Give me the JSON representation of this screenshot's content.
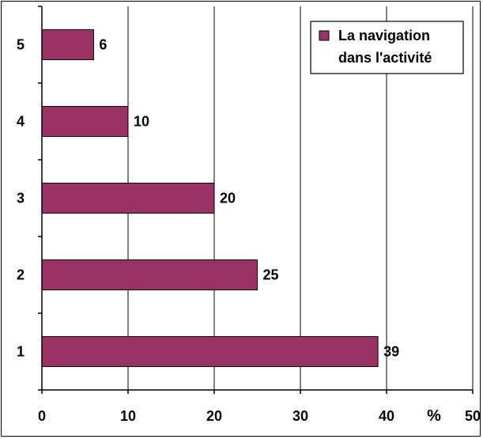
{
  "chart_data": {
    "type": "bar",
    "orientation": "horizontal",
    "categories": [
      "1",
      "2",
      "3",
      "4",
      "5"
    ],
    "series": [
      {
        "name": "La navigation dans l'activité",
        "values": [
          39,
          25,
          20,
          10,
          6
        ],
        "color": "#993366"
      }
    ],
    "data_labels": [
      "39",
      "25",
      "20",
      "10",
      "6"
    ],
    "x_ticks": [
      "0",
      "10",
      "20",
      "30",
      "40",
      "50"
    ],
    "xlim": [
      0,
      50
    ],
    "xlabel": "%",
    "grid": "vertical",
    "legend": {
      "position": "top-right",
      "lines": [
        "La navigation",
        "dans l'activité"
      ],
      "swatch_color": "#993366"
    }
  }
}
